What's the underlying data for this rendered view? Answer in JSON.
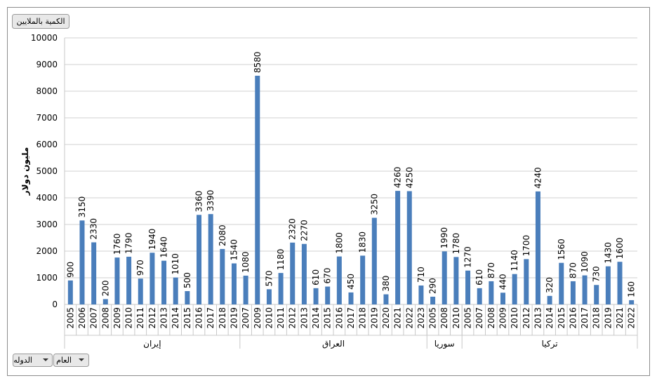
{
  "chart_data": {
    "type": "bar",
    "button_top": "الكمية بالملايين",
    "ylabel": "مليون دولار",
    "filters": [
      "الدوله",
      "العام"
    ],
    "color": "#4a7ebb",
    "ylim": [
      0,
      10000
    ],
    "yticks": [
      0,
      1000,
      2000,
      3000,
      4000,
      5000,
      6000,
      7000,
      8000,
      9000,
      10000
    ],
    "grid": true,
    "groups": [
      {
        "name": "إيران",
        "categories": [
          "2005",
          "2006",
          "2007",
          "2008",
          "2009",
          "2010",
          "2011",
          "2012",
          "2013",
          "2014",
          "2015",
          "2016",
          "2017",
          "2018",
          "2019"
        ],
        "values": [
          900,
          3150,
          2330,
          200,
          1760,
          1790,
          970,
          1940,
          1640,
          1010,
          500,
          3360,
          3390,
          2080,
          1540
        ]
      },
      {
        "name": "العراق",
        "categories": [
          "2007",
          "2009",
          "2010",
          "2011",
          "2012",
          "2013",
          "2014",
          "2015",
          "2016",
          "2017",
          "2018",
          "2019",
          "2020",
          "2021",
          "2022",
          "2023"
        ],
        "values": [
          1080,
          8580,
          570,
          1180,
          2320,
          2270,
          610,
          670,
          1800,
          450,
          1830,
          3250,
          380,
          4260,
          4250,
          710
        ]
      },
      {
        "name": "سوريا",
        "categories": [
          "2005",
          "2008",
          "2010"
        ],
        "values": [
          290,
          1990,
          1780
        ]
      },
      {
        "name": "تركيا",
        "categories": [
          "2005",
          "2007",
          "2008",
          "2009",
          "2010",
          "2012",
          "2013",
          "2014",
          "2015",
          "2016",
          "2017",
          "2018",
          "2019",
          "2021",
          "2022"
        ],
        "values": [
          1270,
          610,
          870,
          440,
          1140,
          1700,
          4240,
          320,
          1560,
          870,
          1090,
          730,
          1430,
          1600,
          160
        ]
      }
    ]
  }
}
